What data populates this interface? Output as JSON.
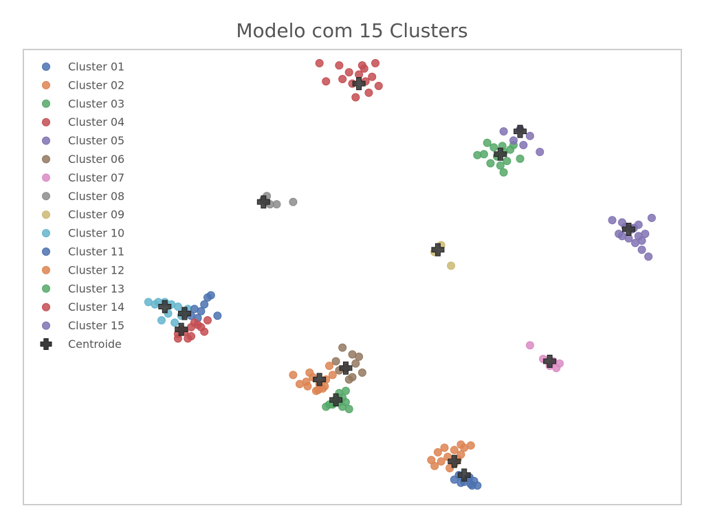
{
  "chart_data": {
    "type": "scatter",
    "title": "Modelo com 15 Clusters",
    "xlabel": "",
    "ylabel": "",
    "grid": false,
    "axes_ticks": false,
    "legend_placement": "top-left",
    "xlim": [
      0,
      100
    ],
    "ylim": [
      0,
      100
    ],
    "colors": {
      "Cluster 01": "#4c72b0",
      "Cluster 02": "#dd8452",
      "Cluster 03": "#55a868",
      "Cluster 04": "#c44e52",
      "Cluster 05": "#8172b3",
      "Cluster 06": "#937860",
      "Cluster 07": "#da8bc3",
      "Cluster 08": "#8c8c8c",
      "Cluster 09": "#ccb974",
      "Cluster 10": "#64b5cd",
      "Cluster 11": "#4c72b0",
      "Cluster 12": "#dd8452",
      "Cluster 13": "#55a868",
      "Cluster 14": "#c44e52",
      "Cluster 15": "#8172b3",
      "Centroide": "#3a3a3a"
    },
    "legend": [
      "Cluster 01",
      "Cluster 02",
      "Cluster 03",
      "Cluster 04",
      "Cluster 05",
      "Cluster 06",
      "Cluster 07",
      "Cluster 08",
      "Cluster 09",
      "Cluster 10",
      "Cluster 11",
      "Cluster 12",
      "Cluster 13",
      "Cluster 14",
      "Cluster 15",
      "Centroide"
    ],
    "series": [
      {
        "name": "Cluster 01",
        "points": [
          [
            67.0,
            5.0
          ],
          [
            68.0,
            4.5
          ],
          [
            67.5,
            5.8
          ],
          [
            66.5,
            4.8
          ],
          [
            68.2,
            4.2
          ],
          [
            65.5,
            5.5
          ],
          [
            67.8,
            6.0
          ],
          [
            69.0,
            4.2
          ],
          [
            66.2,
            6.5
          ],
          [
            68.5,
            5.2
          ]
        ]
      },
      {
        "name": "Cluster 02",
        "points": [
          [
            63.5,
            9.5
          ],
          [
            64.5,
            10.5
          ],
          [
            65.5,
            9.0
          ],
          [
            66.5,
            11.0
          ],
          [
            62.5,
            8.5
          ],
          [
            64.0,
            12.5
          ],
          [
            63.0,
            11.5
          ],
          [
            65.5,
            12.0
          ],
          [
            66.0,
            10.0
          ],
          [
            68.0,
            13.0
          ],
          [
            66.5,
            13.2
          ],
          [
            64.8,
            8.0
          ],
          [
            62.0,
            9.8
          ],
          [
            67.0,
            12.5
          ]
        ]
      },
      {
        "name": "Cluster 03",
        "points": [
          [
            72.0,
            76.5
          ],
          [
            73.0,
            77.5
          ],
          [
            71.5,
            78.5
          ],
          [
            70.0,
            77.0
          ],
          [
            74.0,
            78.0
          ],
          [
            75.5,
            76.0
          ],
          [
            73.5,
            75.5
          ],
          [
            72.5,
            74.5
          ],
          [
            71.0,
            75.0
          ],
          [
            70.5,
            79.5
          ],
          [
            73.0,
            73.0
          ],
          [
            74.5,
            79.0
          ],
          [
            69.0,
            76.8
          ],
          [
            72.8,
            78.8
          ]
        ]
      },
      {
        "name": "Cluster 04",
        "points": [
          [
            52.0,
            93.0
          ],
          [
            53.0,
            94.0
          ],
          [
            51.0,
            94.5
          ],
          [
            50.0,
            92.5
          ],
          [
            49.5,
            95.0
          ],
          [
            54.0,
            92.0
          ],
          [
            52.5,
            90.5
          ],
          [
            48.5,
            93.5
          ],
          [
            51.5,
            96.5
          ],
          [
            53.5,
            97.0
          ],
          [
            50.5,
            89.5
          ],
          [
            45.0,
            97.0
          ],
          [
            46.0,
            93.0
          ],
          [
            48.0,
            96.5
          ],
          [
            51.8,
            95.8
          ]
        ]
      },
      {
        "name": "Cluster 05",
        "points": [
          [
            75.5,
            82.5
          ],
          [
            77.0,
            81.0
          ],
          [
            74.5,
            80.0
          ],
          [
            76.0,
            79.0
          ],
          [
            78.5,
            77.5
          ],
          [
            73.0,
            82.0
          ]
        ]
      },
      {
        "name": "Cluster 06",
        "points": [
          [
            49.0,
            30.0
          ],
          [
            50.5,
            31.0
          ],
          [
            48.0,
            29.5
          ],
          [
            50.0,
            28.0
          ],
          [
            51.5,
            29.0
          ],
          [
            47.5,
            31.5
          ],
          [
            50.0,
            33.0
          ],
          [
            51.0,
            32.5
          ],
          [
            48.5,
            34.5
          ],
          [
            49.5,
            27.5
          ]
        ]
      },
      {
        "name": "Cluster 07",
        "points": [
          [
            77.0,
            35.0
          ],
          [
            79.0,
            32.0
          ],
          [
            80.5,
            31.5
          ],
          [
            81.5,
            31.0
          ],
          [
            80.0,
            30.5
          ],
          [
            81.0,
            30.0
          ]
        ]
      },
      {
        "name": "Cluster 08",
        "points": [
          [
            37.0,
            66.5
          ],
          [
            37.5,
            66.0
          ],
          [
            38.5,
            66.0
          ],
          [
            36.5,
            67.0
          ],
          [
            41.0,
            66.5
          ],
          [
            37.0,
            67.8
          ]
        ]
      },
      {
        "name": "Cluster 09",
        "points": [
          [
            63.5,
            57.0
          ],
          [
            62.5,
            55.5
          ],
          [
            65.0,
            52.5
          ]
        ]
      },
      {
        "name": "Cluster 10",
        "points": [
          [
            22.5,
            44.0
          ],
          [
            23.5,
            43.5
          ],
          [
            24.5,
            42.5
          ],
          [
            21.5,
            44.5
          ],
          [
            20.0,
            44.0
          ],
          [
            22.0,
            42.0
          ],
          [
            24.0,
            41.5
          ],
          [
            20.5,
            44.5
          ],
          [
            19.0,
            44.5
          ],
          [
            21.0,
            40.5
          ],
          [
            23.0,
            40.0
          ],
          [
            25.0,
            43.0
          ]
        ]
      },
      {
        "name": "Cluster 11",
        "points": [
          [
            26.0,
            43.0
          ],
          [
            27.0,
            42.5
          ],
          [
            25.5,
            41.5
          ],
          [
            27.5,
            44.0
          ],
          [
            28.0,
            45.5
          ],
          [
            28.5,
            46.0
          ],
          [
            29.5,
            41.5
          ],
          [
            26.5,
            41.0
          ]
        ]
      },
      {
        "name": "Cluster 12",
        "points": [
          [
            45.0,
            26.5
          ],
          [
            46.0,
            27.5
          ],
          [
            44.0,
            28.0
          ],
          [
            43.0,
            27.0
          ],
          [
            45.5,
            25.5
          ],
          [
            44.5,
            25.0
          ],
          [
            47.0,
            28.5
          ],
          [
            43.5,
            29.0
          ],
          [
            46.5,
            30.5
          ],
          [
            44.8,
            25.2
          ],
          [
            42.0,
            26.5
          ],
          [
            41.0,
            28.5
          ],
          [
            45.8,
            26.0
          ],
          [
            43.2,
            26.0
          ]
        ]
      },
      {
        "name": "Cluster 13",
        "points": [
          [
            48.5,
            23.5
          ],
          [
            49.0,
            25.0
          ],
          [
            48.0,
            22.5
          ],
          [
            47.5,
            23.0
          ],
          [
            49.0,
            22.5
          ],
          [
            48.5,
            21.5
          ],
          [
            47.0,
            22.0
          ],
          [
            46.5,
            22.0
          ],
          [
            48.0,
            24.5
          ],
          [
            46.0,
            21.5
          ],
          [
            49.5,
            21.0
          ]
        ]
      },
      {
        "name": "Cluster 14",
        "points": [
          [
            25.5,
            39.0
          ],
          [
            24.0,
            38.5
          ],
          [
            23.5,
            37.5
          ],
          [
            26.5,
            39.5
          ],
          [
            24.5,
            38.0
          ],
          [
            27.5,
            38.0
          ],
          [
            27.0,
            39.0
          ],
          [
            25.5,
            37.0
          ],
          [
            23.5,
            36.5
          ],
          [
            25.0,
            36.5
          ],
          [
            28.0,
            40.5
          ],
          [
            26.0,
            40.0
          ]
        ]
      },
      {
        "name": "Cluster 15",
        "points": [
          [
            92.5,
            60.5
          ],
          [
            93.5,
            59.0
          ],
          [
            91.5,
            61.0
          ],
          [
            90.5,
            59.5
          ],
          [
            94.0,
            58.0
          ],
          [
            92.0,
            58.5
          ],
          [
            93.0,
            57.5
          ],
          [
            94.5,
            59.5
          ],
          [
            91.0,
            62.0
          ],
          [
            94.0,
            56.0
          ],
          [
            95.5,
            63.0
          ],
          [
            93.5,
            61.5
          ],
          [
            89.5,
            62.5
          ],
          [
            95.0,
            54.5
          ],
          [
            91.0,
            59.0
          ],
          [
            92.8,
            60.8
          ]
        ]
      }
    ],
    "centroids": [
      [
        67.0,
        6.5
      ],
      [
        65.5,
        9.5
      ],
      [
        72.5,
        77.0
      ],
      [
        51.0,
        92.5
      ],
      [
        75.5,
        82.0
      ],
      [
        49.0,
        30.0
      ],
      [
        80.0,
        31.5
      ],
      [
        36.5,
        66.5
      ],
      [
        63.0,
        56.0
      ],
      [
        21.5,
        43.5
      ],
      [
        24.5,
        42.0
      ],
      [
        45.0,
        27.5
      ],
      [
        47.5,
        23.0
      ],
      [
        24.0,
        38.5
      ],
      [
        92.0,
        60.5
      ]
    ]
  }
}
